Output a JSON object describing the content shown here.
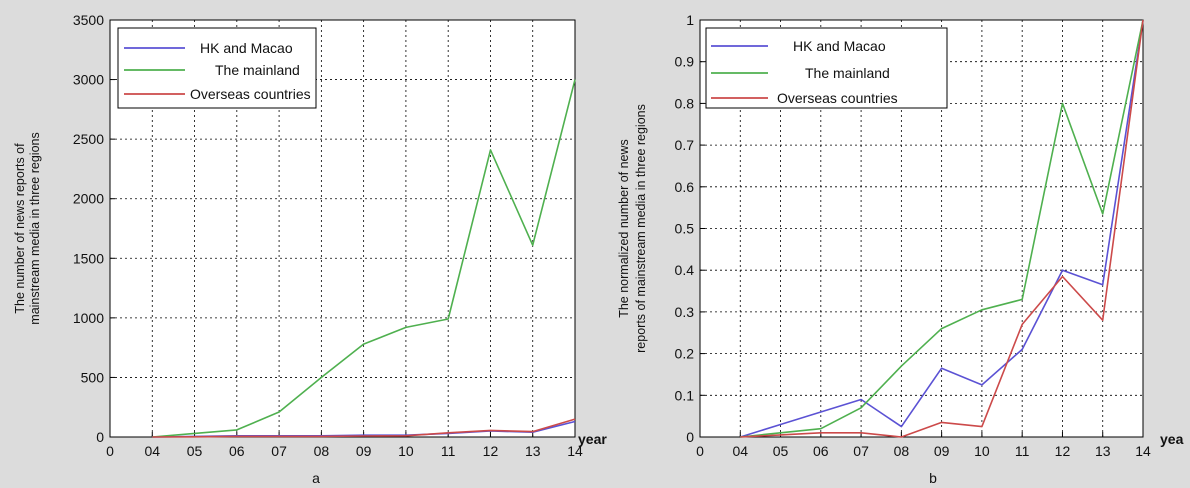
{
  "colors": {
    "background": "#dcdcdc",
    "plot_bg": "#ffffff",
    "hk": "#5b52d4",
    "mainland": "#4fb04f",
    "overseas": "#cc4a4a"
  },
  "chart_data": [
    {
      "type": "line",
      "caption": "a",
      "xlabel": "year",
      "ylabel_lines": [
        "The number of  news reports of",
        "mainstream media in three regions"
      ],
      "x_ticks": [
        "0",
        "04",
        "05",
        "06",
        "07",
        "08",
        "09",
        "10",
        "11",
        "12",
        "13",
        "14"
      ],
      "x": [
        "04",
        "05",
        "06",
        "07",
        "08",
        "09",
        "10",
        "11",
        "12",
        "13",
        "14"
      ],
      "y_ticks": [
        "0",
        "500",
        "1000",
        "1500",
        "2000",
        "2500",
        "3000",
        "3500"
      ],
      "ylim": [
        0,
        3500
      ],
      "grid": true,
      "legend_position": "top-left",
      "series": [
        {
          "name": "HK and Macao",
          "color": "#5b52d4",
          "values": [
            0,
            5,
            10,
            10,
            10,
            15,
            15,
            30,
            50,
            40,
            130
          ]
        },
        {
          "name": "The mainland",
          "color": "#4fb04f",
          "values": [
            0,
            30,
            60,
            210,
            500,
            780,
            920,
            990,
            2410,
            1610,
            3000
          ]
        },
        {
          "name": "Overseas countries",
          "color": "#cc4a4a",
          "values": [
            0,
            2,
            5,
            5,
            5,
            8,
            10,
            35,
            55,
            45,
            150
          ]
        }
      ]
    },
    {
      "type": "line",
      "caption": "b",
      "xlabel": "yea",
      "ylabel_lines": [
        "The normalized number of  news",
        "reports of mainstream media in three regions"
      ],
      "x_ticks": [
        "0",
        "04",
        "05",
        "06",
        "07",
        "08",
        "09",
        "10",
        "11",
        "12",
        "13",
        "14"
      ],
      "x": [
        "04",
        "05",
        "06",
        "07",
        "08",
        "09",
        "10",
        "11",
        "12",
        "13",
        "14"
      ],
      "y_ticks": [
        "0",
        "0.1",
        "0.2",
        "0.3",
        "0.4",
        "0.5",
        "0.6",
        "0.7",
        "0.8",
        "0.9",
        "1"
      ],
      "ylim": [
        0,
        1
      ],
      "grid": true,
      "legend_position": "top-left",
      "series": [
        {
          "name": "HK and Macao",
          "color": "#5b52d4",
          "values": [
            0,
            0.03,
            0.06,
            0.09,
            0.025,
            0.165,
            0.125,
            0.21,
            0.4,
            0.365,
            1.0
          ]
        },
        {
          "name": "The mainland",
          "color": "#4fb04f",
          "values": [
            0,
            0.01,
            0.02,
            0.07,
            0.17,
            0.26,
            0.305,
            0.33,
            0.8,
            0.535,
            1.0
          ]
        },
        {
          "name": "Overseas countries",
          "color": "#cc4a4a",
          "values": [
            0,
            0.005,
            0.01,
            0.01,
            0.0,
            0.035,
            0.025,
            0.27,
            0.385,
            0.28,
            1.0
          ]
        }
      ]
    }
  ]
}
